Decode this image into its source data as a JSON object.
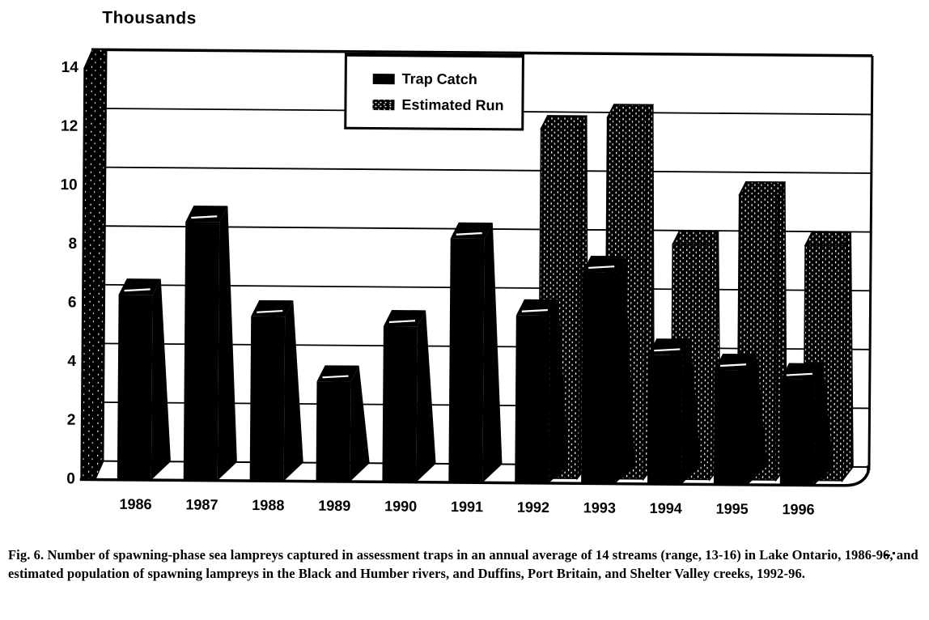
{
  "figure": {
    "axis_title": "Thousands",
    "legend": [
      {
        "label": "Trap Catch",
        "swatch": "solid-black"
      },
      {
        "label": "Estimated Run",
        "swatch": "speckled"
      }
    ],
    "caption": "Fig. 6.  Number of spawning-phase sea lampreys captured in assessment traps in an annual average of 14 streams (range, 13-16) in Lake Ontario, 1986-96, and estimated population of spawning lampreys in the Black and Humber rivers, and Duffins, Port Britain, and Shelter Valley creeks, 1992-96.",
    "ink_color": "#000000",
    "paper_color": "#ffffff"
  },
  "chart_data": {
    "type": "bar",
    "projection": "3d",
    "title": "",
    "ylabel": "Thousands",
    "xlabel": "",
    "categories": [
      "1986",
      "1987",
      "1988",
      "1989",
      "1990",
      "1991",
      "1992",
      "1993",
      "1994",
      "1995",
      "1996"
    ],
    "series": [
      {
        "name": "Trap Catch",
        "style": "solid-black",
        "values": [
          6.3,
          8.8,
          5.6,
          3.4,
          5.3,
          8.3,
          5.7,
          7.2,
          4.4,
          3.9,
          3.6
        ]
      },
      {
        "name": "Estimated Run",
        "style": "speckled",
        "values": [
          null,
          null,
          null,
          null,
          null,
          null,
          11.9,
          12.3,
          8.0,
          9.7,
          8.0
        ]
      }
    ],
    "y_ticks": [
      0,
      2,
      4,
      6,
      8,
      10,
      12,
      14
    ],
    "ylim": [
      0,
      14
    ],
    "grid": true,
    "legend_position": "top-center-inside"
  }
}
